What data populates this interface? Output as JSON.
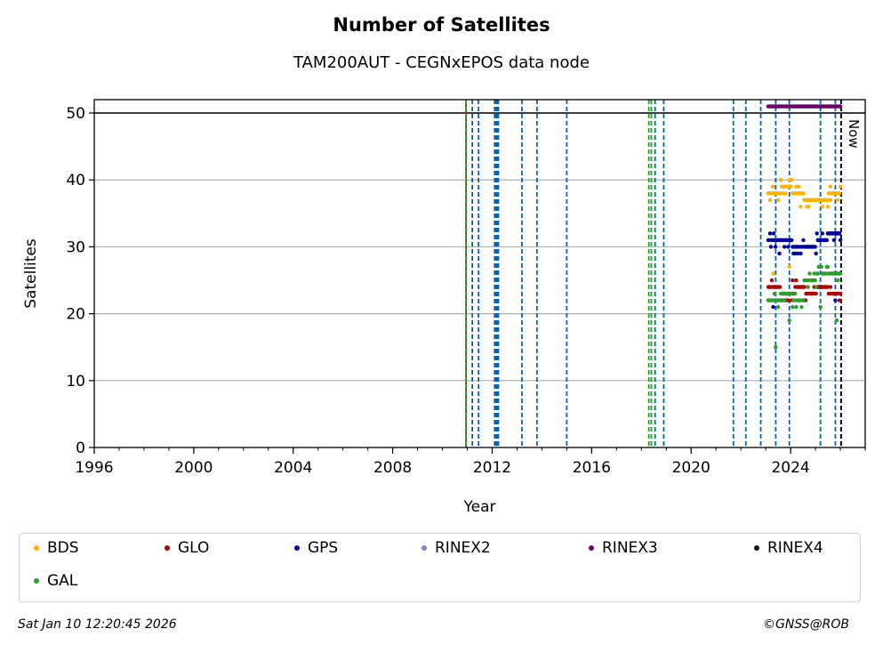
{
  "header": {
    "title": "Number of Satellites",
    "subtitle": "TAM200AUT - CEGNxEPOS data node"
  },
  "chart_data": {
    "type": "scatter",
    "xlabel": "Year",
    "ylabel": "Satellites",
    "xlim": [
      1996,
      2027
    ],
    "ylim": [
      0,
      52
    ],
    "x_ticks": [
      1996,
      2000,
      2004,
      2008,
      2012,
      2016,
      2020,
      2024
    ],
    "y_ticks": [
      0,
      10,
      20,
      30,
      40,
      50
    ],
    "grid": "horizontal",
    "reference_line_y": 50,
    "now_label": "Now",
    "now_x": 2026.03,
    "event_lines": {
      "red": [
        2010.95
      ],
      "green": [
        2010.95,
        2018.3,
        2018.4
      ],
      "blue": [
        2011.2,
        2011.45,
        2012.1,
        2012.15,
        2012.2,
        2012.25,
        2013.2,
        2013.8,
        2015.0,
        2018.55,
        2018.9,
        2021.7,
        2022.2,
        2022.8,
        2023.4,
        2023.95,
        2025.2,
        2025.8
      ]
    },
    "x_range_data": [
      2023.1,
      2026.0
    ],
    "series": [
      {
        "name": "BDS",
        "color": "#ffb300",
        "main": [
          38,
          39,
          38,
          37,
          37,
          38
        ],
        "outliers": [
          {
            "x": 2023.3,
            "y": 26
          },
          {
            "x": 2023.95,
            "y": 27
          },
          {
            "x": 2023.95,
            "y": 40
          },
          {
            "x": 2024.4,
            "y": 36
          },
          {
            "x": 2025.5,
            "y": 36
          },
          {
            "x": 2025.6,
            "y": 39
          }
        ]
      },
      {
        "name": "GLO",
        "color": "#b30000",
        "main": [
          24,
          23,
          24,
          23,
          24,
          23
        ],
        "outliers": [
          {
            "x": 2023.5,
            "y": 22
          },
          {
            "x": 2024.6,
            "y": 22
          }
        ]
      },
      {
        "name": "GPS",
        "color": "#0000a0",
        "main": [
          31,
          31,
          30,
          30,
          31,
          32
        ],
        "outliers": [
          {
            "x": 2023.3,
            "y": 21
          },
          {
            "x": 2023.55,
            "y": 29
          },
          {
            "x": 2024.2,
            "y": 29
          },
          {
            "x": 2025.8,
            "y": 22
          },
          {
            "x": 2025.9,
            "y": 32
          }
        ]
      },
      {
        "name": "RINEX2",
        "color": "#8a7fc4",
        "main": [],
        "outliers": []
      },
      {
        "name": "RINEX3",
        "color": "#6a006a",
        "main": [
          51,
          51,
          51,
          51,
          51,
          51
        ],
        "outliers": []
      },
      {
        "name": "RINEX4",
        "color": "#1a0010",
        "main": [],
        "outliers": []
      },
      {
        "name": "GAL",
        "color": "#2ca02c",
        "main": [
          22,
          23,
          22,
          25,
          27,
          26
        ],
        "outliers": [
          {
            "x": 2023.4,
            "y": 15
          },
          {
            "x": 2023.95,
            "y": 19
          },
          {
            "x": 2025.2,
            "y": 21
          },
          {
            "x": 2025.85,
            "y": 19
          },
          {
            "x": 2025.9,
            "y": 25
          }
        ]
      }
    ]
  },
  "legend": {
    "items": [
      {
        "label": "BDS",
        "color": "#ffb300"
      },
      {
        "label": "GLO",
        "color": "#b30000"
      },
      {
        "label": "GPS",
        "color": "#0000a0"
      },
      {
        "label": "RINEX2",
        "color": "#8a7fc4"
      },
      {
        "label": "RINEX3",
        "color": "#6a006a"
      },
      {
        "label": "RINEX4",
        "color": "#1a0010"
      },
      {
        "label": "GAL",
        "color": "#2ca02c"
      }
    ]
  },
  "footer": {
    "timestamp": "Sat Jan 10 12:20:45 2026",
    "copyright": "©GNSS@ROB"
  }
}
